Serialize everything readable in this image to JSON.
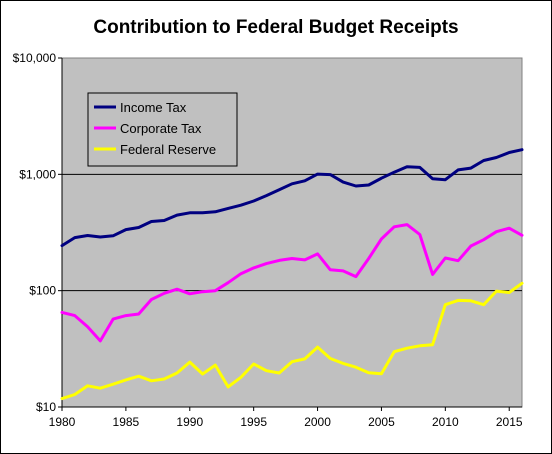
{
  "chart_data": {
    "type": "line",
    "title": "Contribution to Federal Budget Receipts",
    "xlabel": "",
    "ylabel": "",
    "y_scale": "log",
    "ylim": [
      10,
      10000
    ],
    "xlim": [
      1980,
      2016
    ],
    "y_ticks": [
      {
        "value": 10,
        "label": "$10"
      },
      {
        "value": 100,
        "label": "$100"
      },
      {
        "value": 1000,
        "label": "$1,000"
      },
      {
        "value": 10000,
        "label": "$10,000"
      }
    ],
    "x_ticks": [
      {
        "value": 1980,
        "label": "1980"
      },
      {
        "value": 1985,
        "label": "1985"
      },
      {
        "value": 1990,
        "label": "1990"
      },
      {
        "value": 1995,
        "label": "1995"
      },
      {
        "value": 2000,
        "label": "2000"
      },
      {
        "value": 2005,
        "label": "2005"
      },
      {
        "value": 2010,
        "label": "2010"
      },
      {
        "value": 2015,
        "label": "2015"
      }
    ],
    "grid": "horizontal major lines at $100, $1,000",
    "plot_background": "#c0c0c0",
    "legend_position": "top-left",
    "x": [
      1980,
      1981,
      1982,
      1983,
      1984,
      1985,
      1986,
      1987,
      1988,
      1989,
      1990,
      1991,
      1992,
      1993,
      1994,
      1995,
      1996,
      1997,
      1998,
      1999,
      2000,
      2001,
      2002,
      2003,
      2004,
      2005,
      2006,
      2007,
      2008,
      2009,
      2010,
      2011,
      2012,
      2013,
      2014,
      2015,
      2016
    ],
    "series": [
      {
        "name": "Income Tax",
        "color": "#000080",
        "values": [
          244,
          286,
          298,
          289,
          296,
          335,
          349,
          393,
          401,
          446,
          467,
          468,
          476,
          510,
          543,
          590,
          656,
          737,
          829,
          879,
          1004,
          994,
          858,
          794,
          809,
          927,
          1044,
          1163,
          1146,
          915,
          899,
          1091,
          1132,
          1316,
          1395,
          1541,
          1628
        ]
      },
      {
        "name": "Corporate Tax",
        "color": "#ff00ff",
        "values": [
          65,
          61,
          49,
          37,
          57,
          61,
          63,
          84,
          95,
          103,
          94,
          98,
          100,
          117,
          140,
          157,
          171,
          182,
          189,
          184,
          207,
          151,
          148,
          132,
          189,
          278,
          354,
          370,
          304,
          138,
          191,
          181,
          242,
          274,
          321,
          344,
          299
        ]
      },
      {
        "name": "Federal Reserve",
        "color": "#ffff00",
        "values": [
          11.8,
          12.8,
          15.2,
          14.5,
          15.7,
          17.1,
          18.4,
          16.8,
          17.4,
          19.6,
          24.3,
          19.2,
          22.9,
          14.9,
          18.0,
          23.4,
          20.5,
          19.6,
          24.5,
          25.9,
          32.7,
          26.1,
          23.7,
          22.0,
          19.7,
          19.3,
          29.9,
          32.0,
          33.6,
          34.3,
          75.8,
          82.5,
          81.9,
          75.8,
          99.2,
          96.5,
          115.7
        ]
      }
    ]
  }
}
